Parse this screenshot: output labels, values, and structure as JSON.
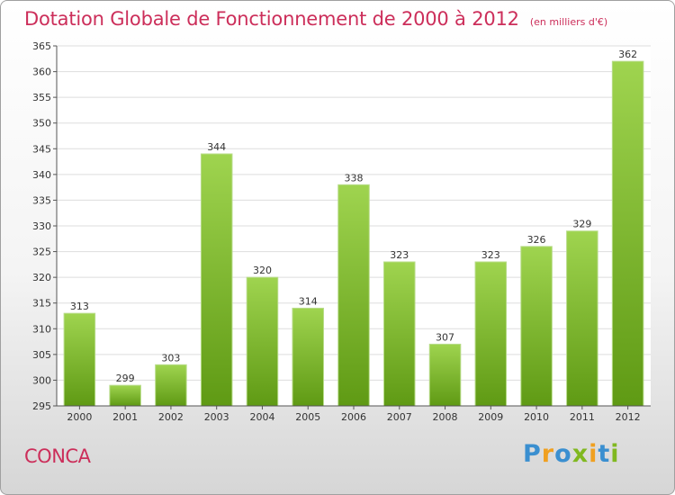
{
  "header": {
    "title": "Dotation Globale de Fonctionnement de 2000 à 2012",
    "subtitle": "(en milliers d'€)"
  },
  "footer": {
    "commune": "CONCA",
    "logo": [
      "P",
      "r",
      "o",
      "x",
      "i",
      "t",
      "i"
    ]
  },
  "colors": {
    "title": "#cc2e5a",
    "bar_light": "#9fd44f",
    "bar_dark": "#5f9a14",
    "grid": "#dddddd"
  },
  "chart_data": {
    "type": "bar",
    "title": "Dotation Globale de Fonctionnement de 2000 à 2012",
    "subtitle": "(en milliers d'€)",
    "xlabel": "",
    "ylabel": "",
    "categories": [
      "2000",
      "2001",
      "2002",
      "2003",
      "2004",
      "2005",
      "2006",
      "2007",
      "2008",
      "2009",
      "2010",
      "2011",
      "2012"
    ],
    "values": [
      313,
      299,
      303,
      344,
      320,
      314,
      338,
      323,
      307,
      323,
      326,
      329,
      362
    ],
    "ylim": [
      295,
      365
    ],
    "yticks": [
      295,
      300,
      305,
      310,
      315,
      320,
      325,
      330,
      335,
      340,
      345,
      350,
      355,
      360,
      365
    ],
    "grid": true,
    "legend": "none"
  }
}
